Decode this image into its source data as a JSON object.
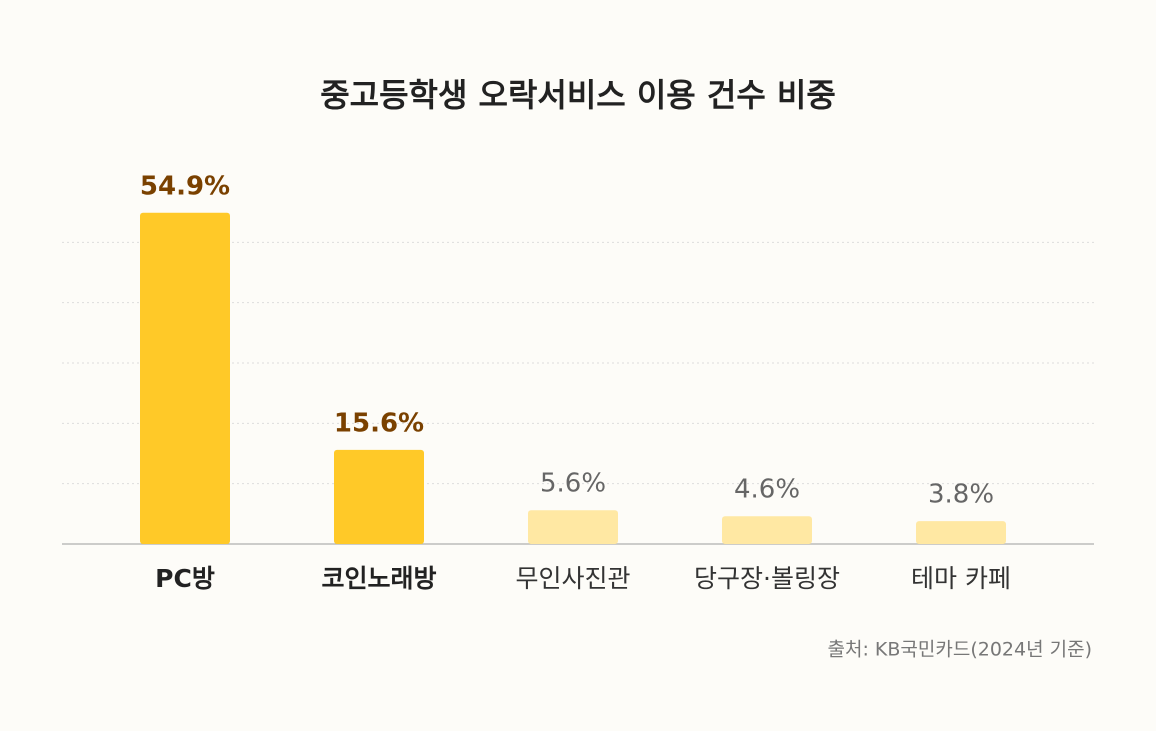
{
  "chart_data": {
    "type": "bar",
    "title": "중고등학생 오락서비스 이용 건수 비중",
    "categories": [
      "PC방",
      "코인노래방",
      "무인사진관",
      "당구장·볼링장",
      "테마 카페"
    ],
    "values": [
      54.9,
      15.6,
      5.6,
      4.6,
      3.8
    ],
    "value_labels": [
      "54.9%",
      "15.6%",
      "5.6%",
      "4.6%",
      "3.8%"
    ],
    "colors": [
      "#ffc928",
      "#ffc928",
      "#ffe8a3",
      "#ffe8a3",
      "#ffe8a3"
    ],
    "label_colors": [
      "#7a4100",
      "#7a4100",
      "#666666",
      "#666666",
      "#666666"
    ],
    "bold": [
      true,
      true,
      false,
      false,
      false
    ],
    "ylim": [
      0,
      60
    ],
    "yticks": [
      0,
      10,
      20,
      30,
      40,
      50
    ],
    "grid": true,
    "source": "출처: KB국민카드(2024년 기준)"
  }
}
